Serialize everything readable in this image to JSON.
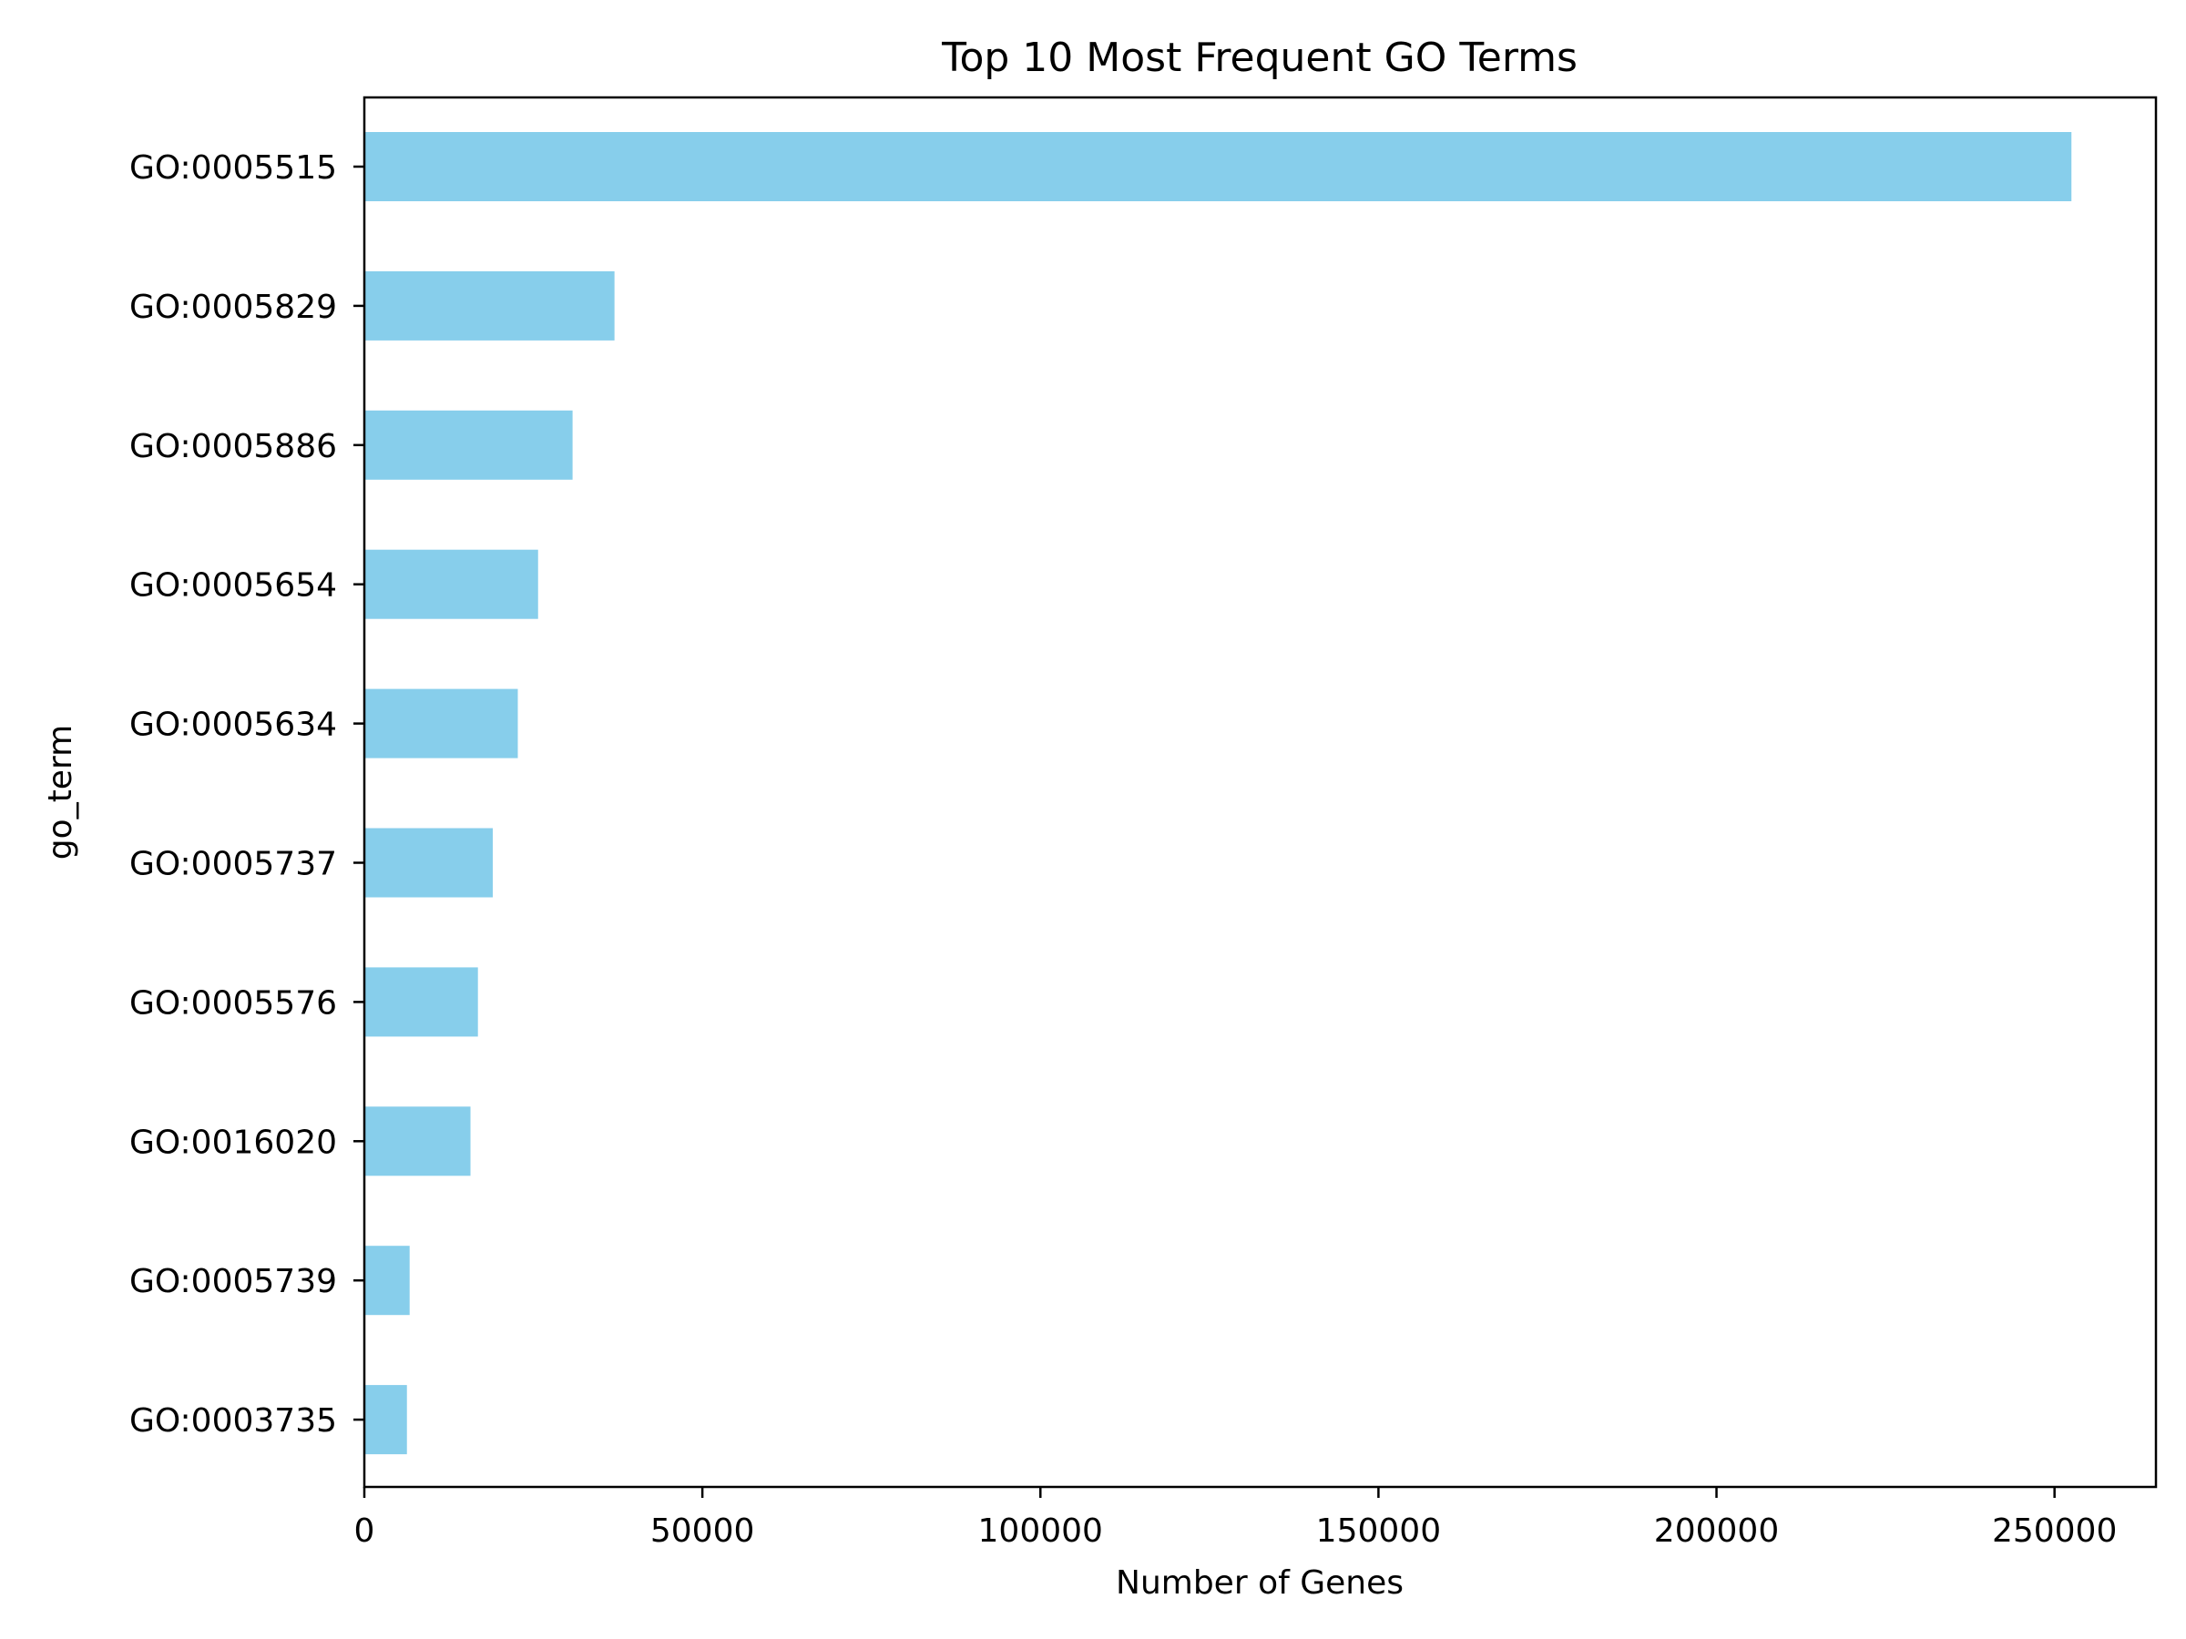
{
  "chart_data": {
    "type": "bar",
    "orientation": "horizontal",
    "title": "Top 10 Most Frequent GO Terms",
    "xlabel": "Number of Genes",
    "ylabel": "go_term",
    "categories": [
      "GO:0005515",
      "GO:0005829",
      "GO:0005886",
      "GO:0005654",
      "GO:0005634",
      "GO:0005737",
      "GO:0005576",
      "GO:0016020",
      "GO:0005739",
      "GO:0003735"
    ],
    "values": [
      252500,
      37000,
      30800,
      25700,
      22700,
      19000,
      16800,
      15700,
      6700,
      6300
    ],
    "xlim": [
      0,
      265000
    ],
    "xticks": [
      0,
      50000,
      100000,
      150000,
      200000,
      250000
    ],
    "xtick_labels": [
      "0",
      "50000",
      "100000",
      "150000",
      "200000",
      "250000"
    ],
    "bar_color": "#87ceeb",
    "grid": false,
    "legend": false
  }
}
